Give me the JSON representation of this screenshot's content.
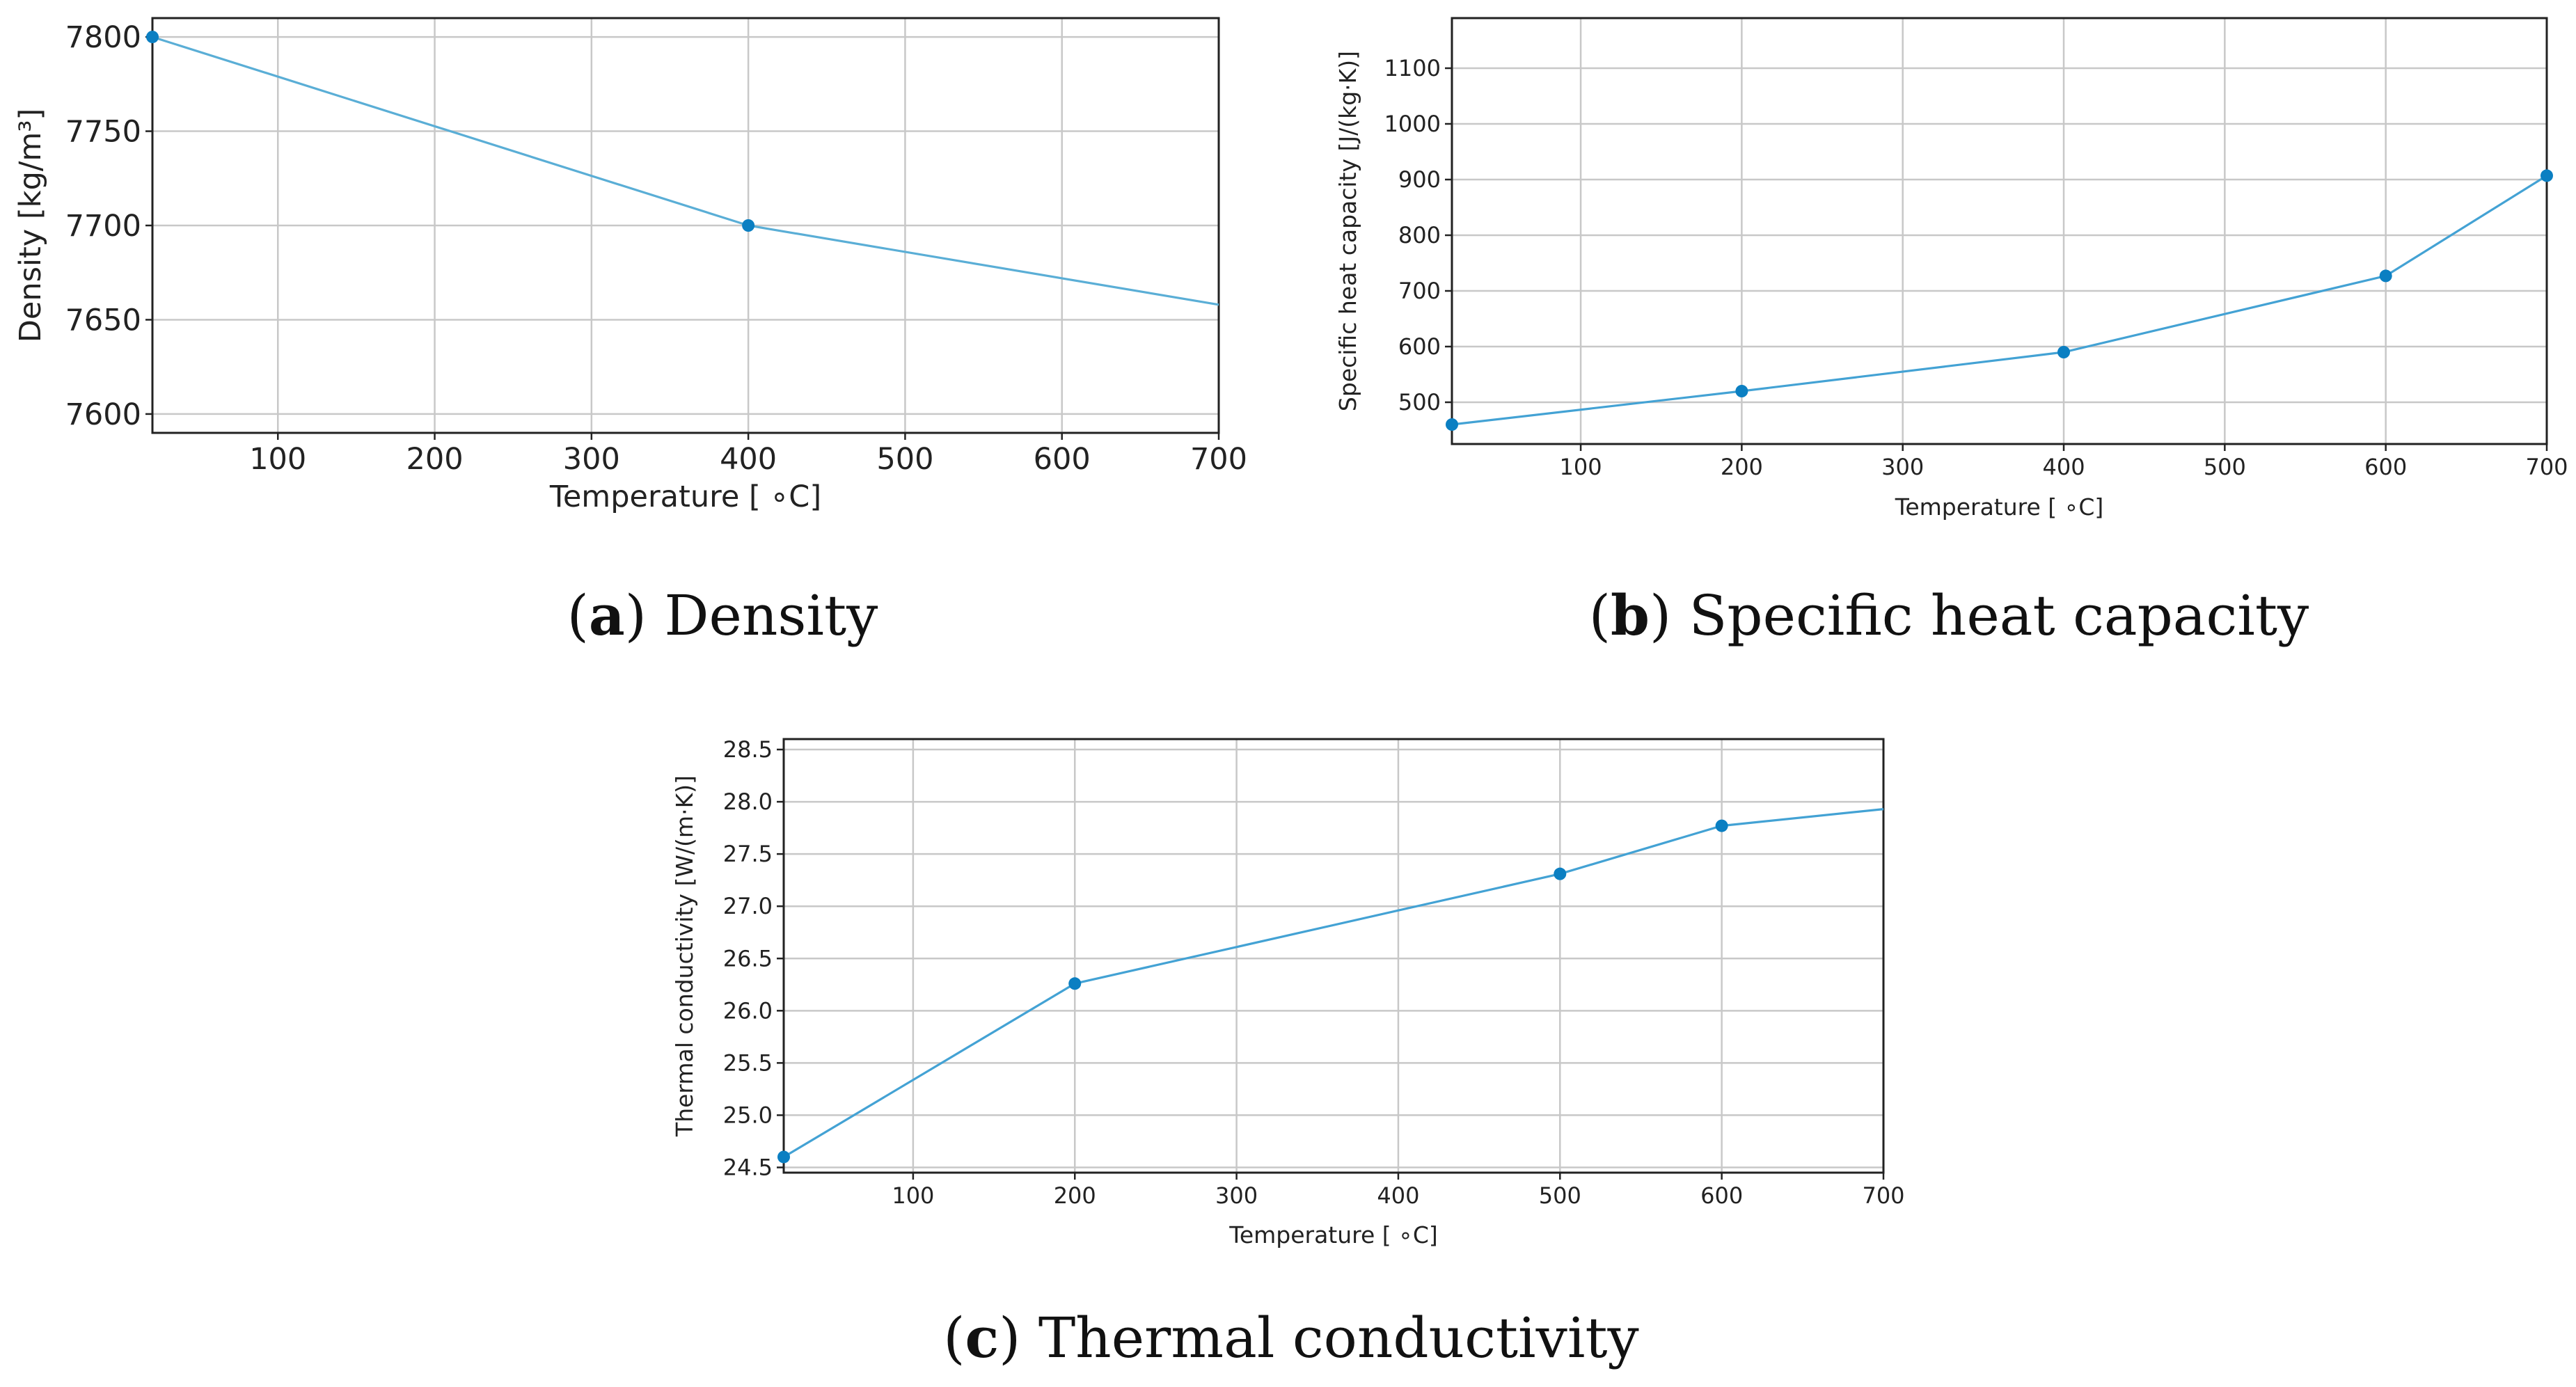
{
  "chart_data": [
    {
      "type": "line",
      "caption_letter": "a",
      "caption_text": "Density",
      "xlabel": "Temperature [ ∘C]",
      "ylabel": "Density [kg/m³]",
      "xlim": [
        20,
        700
      ],
      "ylim": [
        7590,
        7810
      ],
      "xticks": [
        100,
        200,
        300,
        400,
        500,
        600,
        700
      ],
      "yticks": [
        7600,
        7650,
        7700,
        7750,
        7800
      ],
      "grid": true,
      "color": "#5aaed6",
      "marker_color": "#0b7fc2",
      "line_x": [
        20,
        400,
        700
      ],
      "line_y": [
        7800,
        7700,
        7658
      ],
      "marker_x": [
        20,
        400
      ],
      "marker_y": [
        7800,
        7700
      ]
    },
    {
      "type": "line",
      "caption_letter": "b",
      "caption_text": "Specific heat capacity",
      "xlabel": "Temperature [ ∘C]",
      "ylabel": "Specific heat capacity [J/(kg·K)]",
      "xlim": [
        20,
        700
      ],
      "ylim": [
        425,
        1190
      ],
      "xticks": [
        100,
        200,
        300,
        400,
        500,
        600,
        700
      ],
      "yticks": [
        500,
        600,
        700,
        800,
        900,
        1000,
        1100
      ],
      "grid": true,
      "color": "#43a2d4",
      "marker_color": "#0b7fc2",
      "line_x": [
        20,
        200,
        400,
        600,
        700
      ],
      "line_y": [
        460,
        520,
        590,
        727,
        907
      ],
      "marker_x": [
        20,
        200,
        400,
        600,
        700
      ],
      "marker_y": [
        460,
        520,
        590,
        727,
        907
      ]
    },
    {
      "type": "line",
      "caption_letter": "c",
      "caption_text": "Thermal conductivity",
      "xlabel": "Temperature [ ∘C]",
      "ylabel": "Thermal conductivity [W/(m·K)]",
      "xlim": [
        20,
        700
      ],
      "ylim": [
        24.45,
        28.6
      ],
      "xticks": [
        100,
        200,
        300,
        400,
        500,
        600,
        700
      ],
      "yticks": [
        24.5,
        25.0,
        25.5,
        26.0,
        26.5,
        27.0,
        27.5,
        28.0,
        28.5
      ],
      "grid": true,
      "color": "#43a2d4",
      "marker_color": "#0b7fc2",
      "line_x": [
        20,
        200,
        500,
        600,
        700
      ],
      "line_y": [
        24.6,
        26.26,
        27.31,
        27.77,
        27.93
      ],
      "marker_x": [
        20,
        200,
        500,
        600
      ],
      "marker_y": [
        24.6,
        26.26,
        27.31,
        27.77
      ]
    }
  ]
}
